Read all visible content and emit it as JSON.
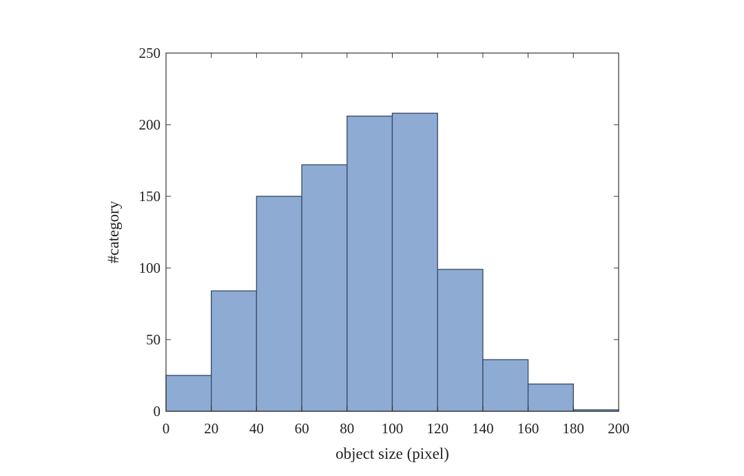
{
  "chart_data": {
    "type": "bar",
    "subtype": "histogram",
    "bin_edges": [
      0,
      20,
      40,
      60,
      80,
      100,
      120,
      140,
      160,
      180,
      200
    ],
    "values": [
      25,
      84,
      150,
      172,
      206,
      208,
      99,
      36,
      19,
      1
    ],
    "xlabel": "object size (pixel)",
    "ylabel": "#category",
    "xlim": [
      0,
      200
    ],
    "ylim": [
      0,
      250
    ],
    "xticks": [
      "0",
      "20",
      "40",
      "60",
      "80",
      "100",
      "120",
      "140",
      "160",
      "180",
      "200"
    ],
    "yticks": [
      "0",
      "50",
      "100",
      "150",
      "200",
      "250"
    ],
    "grid": false,
    "legend": "none",
    "colors": {
      "bar_fill": "#8eabd4",
      "bar_edge": "#3c4f6b",
      "frame": "#333333",
      "text": "#222222"
    }
  }
}
